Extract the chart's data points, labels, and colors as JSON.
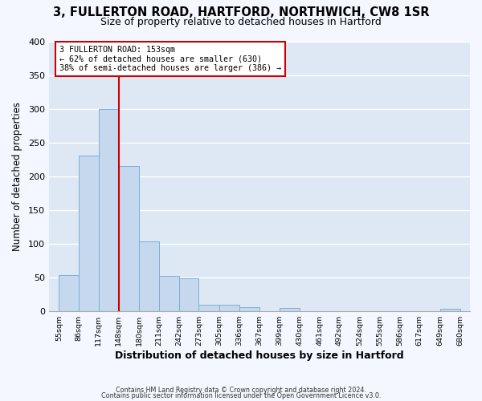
{
  "title_line1": "3, FULLERTON ROAD, HARTFORD, NORTHWICH, CW8 1SR",
  "title_line2": "Size of property relative to detached houses in Hartford",
  "xlabel": "Distribution of detached houses by size in Hartford",
  "ylabel": "Number of detached properties",
  "bar_edges": [
    55,
    86,
    117,
    148,
    180,
    211,
    242,
    273,
    305,
    336,
    367,
    399,
    430,
    461,
    492,
    524,
    555,
    586,
    617,
    649,
    680
  ],
  "bar_heights": [
    53,
    231,
    300,
    215,
    103,
    52,
    49,
    10,
    10,
    6,
    0,
    5,
    0,
    0,
    0,
    0,
    0,
    0,
    0,
    4
  ],
  "bar_color": "#c5d8ee",
  "bar_edge_color": "#7bafd4",
  "reference_line_x": 148,
  "reference_line_color": "#cc0000",
  "annotation_line1": "3 FULLERTON ROAD: 153sqm",
  "annotation_line2": "← 62% of detached houses are smaller (630)",
  "annotation_line3": "38% of semi-detached houses are larger (386) →",
  "annotation_box_color": "#cc0000",
  "ylim": [
    0,
    400
  ],
  "yticks": [
    0,
    50,
    100,
    150,
    200,
    250,
    300,
    350,
    400
  ],
  "tick_labels": [
    "55sqm",
    "86sqm",
    "117sqm",
    "148sqm",
    "180sqm",
    "211sqm",
    "242sqm",
    "273sqm",
    "305sqm",
    "336sqm",
    "367sqm",
    "399sqm",
    "430sqm",
    "461sqm",
    "492sqm",
    "524sqm",
    "555sqm",
    "586sqm",
    "617sqm",
    "649sqm",
    "680sqm"
  ],
  "footer_line1": "Contains HM Land Registry data © Crown copyright and database right 2024.",
  "footer_line2": "Contains public sector information licensed under the Open Government Licence v3.0.",
  "fig_bg_color": "#f4f7ff",
  "plot_bg_color": "#dde8f4",
  "grid_color": "#ffffff",
  "spine_color": "#aaaaaa"
}
